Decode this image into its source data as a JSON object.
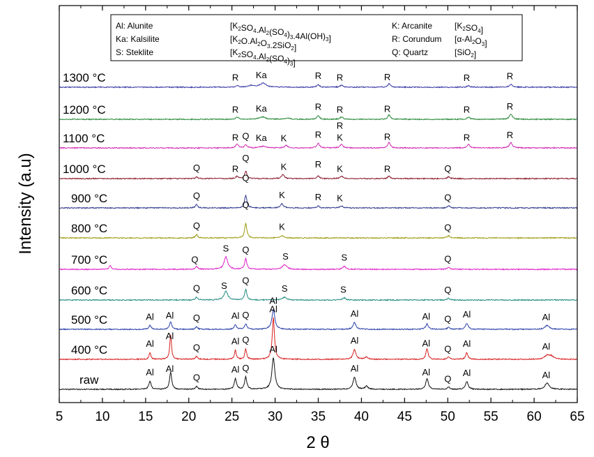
{
  "chart_data": {
    "type": "line",
    "title": "",
    "xlabel": "2 θ",
    "ylabel": "Intensity (a.u)",
    "xlim": [
      5,
      65
    ],
    "xticks": [
      "5",
      "10",
      "15",
      "20",
      "25",
      "30",
      "35",
      "40",
      "45",
      "50",
      "55",
      "60",
      "65"
    ],
    "legend": {
      "position": "top-center",
      "entries": [
        {
          "abbr": "Al",
          "mineral": "Alunite",
          "formula": "[K2SO4.Al2(SO4)3.4Al(OH)3]"
        },
        {
          "abbr": "Ka",
          "mineral": "Kalsilite",
          "formula": "[K2O.Al2O3.2SiO2]"
        },
        {
          "abbr": "S",
          "mineral": "Steklite",
          "formula": "[K2SO4.Al2(SO4)3]"
        },
        {
          "abbr": "K",
          "mineral": "Arcanite",
          "formula": "[K2SO4]"
        },
        {
          "abbr": "R",
          "mineral": "Corundum",
          "formula": "[α-Al2O3]"
        },
        {
          "abbr": "Q",
          "mineral": "Quartz",
          "formula": "[SiO2]"
        }
      ]
    },
    "series": [
      {
        "name": "1300 °C",
        "color": "#3a3aa6",
        "peaks": [
          [
            25.6,
            0.22,
            0.18
          ],
          [
            27.2,
            0.2,
            0.4
          ],
          [
            28.6,
            0.5,
            0.45
          ],
          [
            35.0,
            0.35,
            0.18
          ],
          [
            37.7,
            0.25,
            0.2
          ],
          [
            43.2,
            0.45,
            0.18
          ],
          [
            52.4,
            0.2,
            0.2
          ],
          [
            57.3,
            0.4,
            0.2
          ]
        ],
        "labels": [
          {
            "t": "R",
            "x": 25.4,
            "lift": 8
          },
          {
            "t": "Ka",
            "x": 28.4,
            "lift": 8
          },
          {
            "t": "R",
            "x": 35.0,
            "lift": 8
          },
          {
            "t": "R",
            "x": 37.5,
            "lift": 8
          },
          {
            "t": "R",
            "x": 43.0,
            "lift": 8
          },
          {
            "t": "R",
            "x": 52.2,
            "lift": 8
          },
          {
            "t": "R",
            "x": 57.2,
            "lift": 8
          }
        ]
      },
      {
        "name": "1200 °C",
        "color": "#2a8a3a",
        "peaks": [
          [
            25.6,
            0.3,
            0.18
          ],
          [
            28.5,
            0.3,
            0.45
          ],
          [
            31.5,
            0.15,
            0.3
          ],
          [
            35.0,
            0.5,
            0.18
          ],
          [
            37.7,
            0.3,
            0.2
          ],
          [
            43.2,
            0.55,
            0.18
          ],
          [
            52.4,
            0.3,
            0.2
          ],
          [
            57.3,
            0.7,
            0.2
          ]
        ],
        "labels": [
          {
            "t": "R",
            "x": 25.4,
            "lift": 8
          },
          {
            "t": "Ka",
            "x": 28.4,
            "lift": 8
          },
          {
            "t": "R",
            "x": 35.0,
            "lift": 8
          },
          {
            "t": "R",
            "x": 37.5,
            "lift": 8
          },
          {
            "t": "R",
            "x": 43.0,
            "lift": 8
          },
          {
            "t": "R",
            "x": 52.2,
            "lift": 8
          },
          {
            "t": "R",
            "x": 57.2,
            "lift": 8
          }
        ]
      },
      {
        "name": "1100 °C",
        "color": "#d12ab2",
        "peaks": [
          [
            25.6,
            0.5,
            0.18
          ],
          [
            26.6,
            0.4,
            0.15
          ],
          [
            28.6,
            0.2,
            0.45
          ],
          [
            31.3,
            0.35,
            0.2
          ],
          [
            35.0,
            0.6,
            0.18
          ],
          [
            37.7,
            0.45,
            0.2
          ],
          [
            43.2,
            0.7,
            0.18
          ],
          [
            52.4,
            0.45,
            0.2
          ],
          [
            57.3,
            0.7,
            0.2
          ]
        ],
        "labels": [
          {
            "t": "R",
            "x": 25.4,
            "lift": 8
          },
          {
            "t": "Q",
            "x": 26.6,
            "lift": 8
          },
          {
            "t": "Ka",
            "x": 28.4,
            "lift": 8
          },
          {
            "t": "K",
            "x": 31.0,
            "lift": 8
          },
          {
            "t": "R",
            "x": 35.0,
            "lift": 8
          },
          {
            "t": "R",
            "x": 37.5,
            "lift": 25
          },
          {
            "t": "K",
            "x": 37.5,
            "lift": 8
          },
          {
            "t": "R",
            "x": 43.0,
            "lift": 8
          },
          {
            "t": "R",
            "x": 52.2,
            "lift": 8
          },
          {
            "t": "R",
            "x": 57.2,
            "lift": 8
          }
        ]
      },
      {
        "name": "1000 °C",
        "color": "#8b1a2e",
        "peaks": [
          [
            20.9,
            0.25,
            0.15
          ],
          [
            25.6,
            0.3,
            0.18
          ],
          [
            26.6,
            1.0,
            0.15
          ],
          [
            30.9,
            0.5,
            0.2
          ],
          [
            35.0,
            0.35,
            0.18
          ],
          [
            37.7,
            0.3,
            0.2
          ],
          [
            43.2,
            0.3,
            0.18
          ],
          [
            50.1,
            0.25,
            0.15
          ]
        ],
        "labels": [
          {
            "t": "Q",
            "x": 20.9,
            "lift": 8
          },
          {
            "t": "R",
            "x": 25.4,
            "lift": 8
          },
          {
            "t": "Q",
            "x": 26.6,
            "lift": 14
          },
          {
            "t": "K",
            "x": 31.0,
            "lift": 8
          },
          {
            "t": "R",
            "x": 35.0,
            "lift": 12
          },
          {
            "t": "K",
            "x": 37.5,
            "lift": 8
          },
          {
            "t": "R",
            "x": 43.0,
            "lift": 8
          },
          {
            "t": "Q",
            "x": 50.0,
            "lift": 8
          }
        ]
      },
      {
        "name": "900 °C",
        "color": "#2e3a8c",
        "peaks": [
          [
            20.9,
            0.45,
            0.15
          ],
          [
            26.6,
            1.7,
            0.15
          ],
          [
            30.8,
            0.55,
            0.2
          ],
          [
            35.0,
            0.25,
            0.18
          ],
          [
            37.7,
            0.25,
            0.2
          ],
          [
            50.1,
            0.3,
            0.15
          ]
        ],
        "labels": [
          {
            "t": "Q",
            "x": 20.9,
            "lift": 8
          },
          {
            "t": "Q",
            "x": 26.6,
            "lift": 20
          },
          {
            "t": "K",
            "x": 30.8,
            "lift": 8
          },
          {
            "t": "R",
            "x": 35.0,
            "lift": 8
          },
          {
            "t": "K",
            "x": 37.5,
            "lift": 8
          },
          {
            "t": "Q",
            "x": 50.0,
            "lift": 8
          }
        ]
      },
      {
        "name": "800 °C",
        "color": "#9a9a10",
        "peaks": [
          [
            20.9,
            0.45,
            0.15
          ],
          [
            26.6,
            1.9,
            0.15
          ],
          [
            30.8,
            0.3,
            0.2
          ],
          [
            50.1,
            0.3,
            0.15
          ]
        ],
        "labels": [
          {
            "t": "Q",
            "x": 20.9,
            "lift": 8
          },
          {
            "t": "Q",
            "x": 26.6,
            "lift": 22
          },
          {
            "t": "K",
            "x": 30.8,
            "lift": 8
          },
          {
            "t": "Q",
            "x": 50.0,
            "lift": 8
          }
        ]
      },
      {
        "name": "700 °C",
        "color": "#e020c8",
        "peaks": [
          [
            10.9,
            0.5,
            0.15
          ],
          [
            20.9,
            0.4,
            0.15
          ],
          [
            24.3,
            1.6,
            0.25
          ],
          [
            26.6,
            1.4,
            0.15
          ],
          [
            31.1,
            0.6,
            0.3
          ],
          [
            38.0,
            0.4,
            0.2
          ],
          [
            50.1,
            0.3,
            0.15
          ]
        ],
        "labels": [
          {
            "t": "Q",
            "x": 20.7,
            "lift": 8
          },
          {
            "t": "S",
            "x": 24.3,
            "lift": 8
          },
          {
            "t": "Q",
            "x": 26.6,
            "lift": 8
          },
          {
            "t": "S",
            "x": 31.2,
            "lift": 8
          },
          {
            "t": "S",
            "x": 38.0,
            "lift": 8
          },
          {
            "t": "Q",
            "x": 50.0,
            "lift": 8
          }
        ]
      },
      {
        "name": "600 °C",
        "color": "#1f8a80",
        "peaks": [
          [
            20.9,
            0.4,
            0.15
          ],
          [
            24.3,
            1.2,
            0.25
          ],
          [
            26.6,
            1.4,
            0.15
          ],
          [
            31.1,
            0.35,
            0.3
          ],
          [
            38.0,
            0.3,
            0.2
          ],
          [
            50.1,
            0.25,
            0.15
          ]
        ],
        "labels": [
          {
            "t": "Q",
            "x": 20.9,
            "lift": 8
          },
          {
            "t": "S",
            "x": 24.1,
            "lift": 8
          },
          {
            "t": "Q",
            "x": 26.6,
            "lift": 8
          },
          {
            "t": "S",
            "x": 31.1,
            "lift": 8
          },
          {
            "t": "S",
            "x": 37.9,
            "lift": 8
          },
          {
            "t": "Q",
            "x": 50.0,
            "lift": 8
          }
        ]
      },
      {
        "name": "500 °C",
        "color": "#2a40a8",
        "peaks": [
          [
            15.5,
            0.5,
            0.15
          ],
          [
            17.9,
            1.0,
            0.15
          ],
          [
            20.9,
            0.35,
            0.15
          ],
          [
            25.4,
            0.6,
            0.15
          ],
          [
            26.6,
            0.7,
            0.15
          ],
          [
            29.8,
            2.6,
            0.2
          ],
          [
            39.2,
            0.9,
            0.2
          ],
          [
            47.6,
            0.7,
            0.18
          ],
          [
            50.1,
            0.3,
            0.15
          ],
          [
            52.2,
            0.8,
            0.18
          ],
          [
            61.5,
            0.5,
            0.3
          ]
        ],
        "labels": [
          {
            "t": "Al",
            "x": 15.5,
            "lift": 8
          },
          {
            "t": "Al",
            "x": 17.8,
            "lift": 8
          },
          {
            "t": "Q",
            "x": 20.9,
            "lift": 8
          },
          {
            "t": "Al",
            "x": 25.4,
            "lift": 8
          },
          {
            "t": "Q",
            "x": 26.6,
            "lift": 8
          },
          {
            "t": "Al",
            "x": 29.8,
            "lift": 8
          },
          {
            "t": "Al",
            "x": 39.2,
            "lift": 8
          },
          {
            "t": "Al",
            "x": 47.5,
            "lift": 8
          },
          {
            "t": "Q",
            "x": 50.0,
            "lift": 8
          },
          {
            "t": "Al",
            "x": 52.2,
            "lift": 8
          },
          {
            "t": "Al",
            "x": 61.4,
            "lift": 8
          }
        ]
      },
      {
        "name": "400 °C",
        "color": "#d81e1e",
        "peaks": [
          [
            15.5,
            0.9,
            0.12
          ],
          [
            17.9,
            3.2,
            0.12
          ],
          [
            20.9,
            0.4,
            0.15
          ],
          [
            25.4,
            1.2,
            0.12
          ],
          [
            26.6,
            1.4,
            0.12
          ],
          [
            29.8,
            5.4,
            0.15
          ],
          [
            39.2,
            1.3,
            0.2
          ],
          [
            40.6,
            0.3,
            0.2
          ],
          [
            47.6,
            1.4,
            0.15
          ],
          [
            50.1,
            0.3,
            0.15
          ],
          [
            52.2,
            0.9,
            0.15
          ],
          [
            61.5,
            0.5,
            0.3
          ],
          [
            62.0,
            0.4,
            0.3
          ]
        ],
        "labels": [
          {
            "t": "Al",
            "x": 15.5,
            "lift": 8
          },
          {
            "t": "Al",
            "x": 17.8,
            "lift": 8
          },
          {
            "t": "Q",
            "x": 20.9,
            "lift": 8
          },
          {
            "t": "Al",
            "x": 25.4,
            "lift": 8
          },
          {
            "t": "Q",
            "x": 26.6,
            "lift": 8
          },
          {
            "t": "Al",
            "x": 29.8,
            "lift": 8
          },
          {
            "t": "Al",
            "x": 39.2,
            "lift": 8
          },
          {
            "t": "Al",
            "x": 47.5,
            "lift": 8
          },
          {
            "t": "Q",
            "x": 50.0,
            "lift": 8
          },
          {
            "t": "Al",
            "x": 52.2,
            "lift": 8
          },
          {
            "t": "Al",
            "x": 61.4,
            "lift": 8
          }
        ]
      },
      {
        "name": "raw",
        "color": "#111111",
        "peaks": [
          [
            15.5,
            1.1,
            0.15
          ],
          [
            17.9,
            2.2,
            0.15
          ],
          [
            20.9,
            0.4,
            0.15
          ],
          [
            25.4,
            1.4,
            0.15
          ],
          [
            26.6,
            1.6,
            0.15
          ],
          [
            29.8,
            4.1,
            0.2
          ],
          [
            39.2,
            1.6,
            0.2
          ],
          [
            40.6,
            0.4,
            0.2
          ],
          [
            47.6,
            1.4,
            0.18
          ],
          [
            50.1,
            0.3,
            0.15
          ],
          [
            52.2,
            1.0,
            0.18
          ],
          [
            61.5,
            0.8,
            0.3
          ]
        ],
        "labels": [
          {
            "t": "Al",
            "x": 15.5,
            "lift": 8
          },
          {
            "t": "Al",
            "x": 17.8,
            "lift": 8
          },
          {
            "t": "Q",
            "x": 20.9,
            "lift": 8
          },
          {
            "t": "Al",
            "x": 25.4,
            "lift": 8
          },
          {
            "t": "Q",
            "x": 26.6,
            "lift": 8
          },
          {
            "t": "Al",
            "x": 29.8,
            "lift": 8
          },
          {
            "t": "Al",
            "x": 39.2,
            "lift": 8
          },
          {
            "t": "Al",
            "x": 47.5,
            "lift": 8
          },
          {
            "t": "Q",
            "x": 50.0,
            "lift": 8
          },
          {
            "t": "Al",
            "x": 52.2,
            "lift": 8
          },
          {
            "t": "Al",
            "x": 61.4,
            "lift": 8
          }
        ]
      }
    ]
  }
}
